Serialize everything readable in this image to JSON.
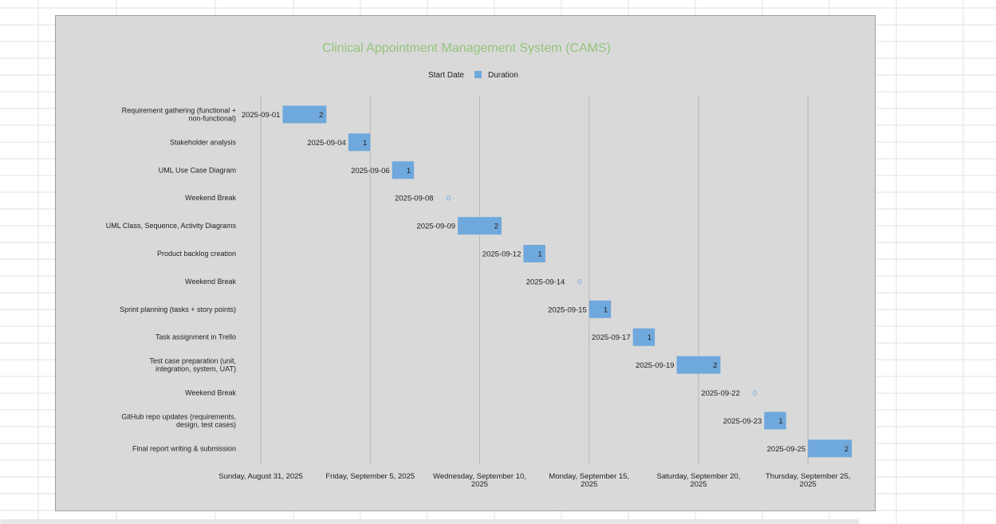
{
  "chart_data": {
    "type": "bar",
    "orientation": "horizontal",
    "stacked": true,
    "title": "Clinical Appointment Management System (CAMS)",
    "legend": {
      "position": "top",
      "entries": [
        {
          "name": "Start Date",
          "color": ""
        },
        {
          "name": "Duration",
          "color": "#6fa8dc"
        }
      ]
    },
    "colors": {
      "title": "#93c47d",
      "bar": "#6fa8dc",
      "zero_label": "#6fa8dc",
      "panel": "#d9d9d9",
      "gridline": "#b7b7b7"
    },
    "categories": [
      "Requirement gathering (functional + non-functional)",
      "Stakeholder analysis",
      "UML Use Case Diagram",
      "Weekend Break",
      "UML Class, Sequence, Activity Diagrams",
      "Product backlog creation",
      "Weekend Break",
      "Sprint planning (tasks + story points)",
      "Task assignment in Trello",
      "Test case preparation (unit, integration, system, UAT)",
      "Weekend Break",
      "GitHub repo updates (requirements, design, test cases)",
      "Final report writing & submission"
    ],
    "series": [
      {
        "name": "Start Date",
        "values": [
          "2025-09-01",
          "2025-09-04",
          "2025-09-06",
          "2025-09-08",
          "2025-09-09",
          "2025-09-12",
          "2025-09-14",
          "2025-09-15",
          "2025-09-17",
          "2025-09-19",
          "2025-09-22",
          "2025-09-23",
          "2025-09-25"
        ]
      },
      {
        "name": "Duration",
        "values": [
          2,
          1,
          1,
          0,
          2,
          1,
          0,
          1,
          1,
          2,
          0,
          1,
          2
        ]
      }
    ],
    "x_axis": {
      "type": "date",
      "range": [
        "2025-08-31",
        "2025-09-27"
      ],
      "ticks": [
        {
          "date": "2025-08-31",
          "label": "Sunday, August 31, 2025"
        },
        {
          "date": "2025-09-05",
          "label": "Friday, September 5, 2025"
        },
        {
          "date": "2025-09-10",
          "label": "Wednesday, September 10, 2025"
        },
        {
          "date": "2025-09-15",
          "label": "Monday, September 15, 2025"
        },
        {
          "date": "2025-09-20",
          "label": "Saturday, September 20, 2025"
        },
        {
          "date": "2025-09-25",
          "label": "Thursday, September 25, 2025"
        }
      ]
    },
    "grid": true
  }
}
